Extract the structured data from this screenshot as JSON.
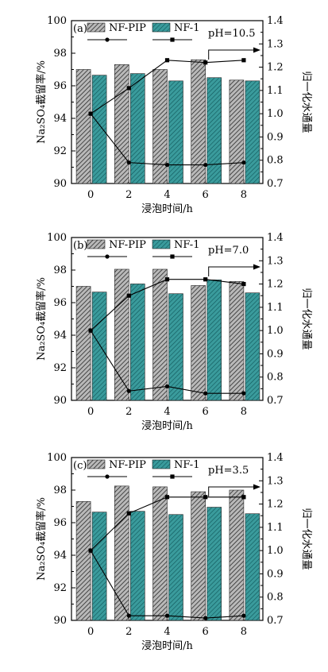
{
  "chart_data": [
    {
      "type": "bar",
      "panel_label": "(a)",
      "annotation": "pH=10.5",
      "categories": [
        "0",
        "2",
        "4",
        "6",
        "8"
      ],
      "xlabel": "浸泡时间/h",
      "ylabel": "Na₂SO₄截留率/%",
      "y2label": "归一化水通量",
      "ylim": [
        90,
        100
      ],
      "y2lim": [
        0.7,
        1.4
      ],
      "yticks": [
        "90",
        "92",
        "94",
        "96",
        "98",
        "100"
      ],
      "y2ticks": [
        "0.7",
        "0.8",
        "0.9",
        "1.0",
        "1.1",
        "1.2",
        "1.3",
        "1.4"
      ],
      "series": [
        {
          "name": "NF-PIP",
          "kind": "bar",
          "values": [
            97.0,
            97.3,
            97.0,
            97.6,
            96.35
          ]
        },
        {
          "name": "NF-1",
          "kind": "bar",
          "values": [
            96.65,
            96.75,
            96.3,
            96.5,
            96.3
          ]
        },
        {
          "name": "NF-PIP",
          "kind": "line",
          "marker": "circle",
          "axis": "right",
          "values": [
            1.0,
            0.79,
            0.78,
            0.78,
            0.79
          ]
        },
        {
          "name": "NF-1",
          "kind": "line",
          "marker": "square",
          "axis": "right",
          "values": [
            1.0,
            1.11,
            1.23,
            1.22,
            1.23
          ]
        }
      ],
      "legend_position": "top-left",
      "grid": false
    },
    {
      "type": "bar",
      "panel_label": "(b)",
      "annotation": "pH=7.0",
      "categories": [
        "0",
        "2",
        "4",
        "6",
        "8"
      ],
      "xlabel": "浸泡时间/h",
      "ylabel": "Na₂SO₄截留率/%",
      "y2label": "归一化水通量",
      "ylim": [
        90,
        100
      ],
      "y2lim": [
        0.7,
        1.4
      ],
      "yticks": [
        "90",
        "92",
        "94",
        "96",
        "98",
        "100"
      ],
      "y2ticks": [
        "0.7",
        "0.8",
        "0.9",
        "1.0",
        "1.1",
        "1.2",
        "1.3",
        "1.4"
      ],
      "series": [
        {
          "name": "NF-PIP",
          "kind": "bar",
          "values": [
            97.0,
            98.05,
            98.05,
            97.05,
            97.3
          ]
        },
        {
          "name": "NF-1",
          "kind": "bar",
          "values": [
            96.65,
            97.15,
            96.55,
            97.4,
            96.6
          ]
        },
        {
          "name": "NF-PIP",
          "kind": "line",
          "marker": "circle",
          "axis": "right",
          "values": [
            1.0,
            0.74,
            0.76,
            0.73,
            0.73
          ]
        },
        {
          "name": "NF-1",
          "kind": "line",
          "marker": "square",
          "axis": "right",
          "values": [
            1.0,
            1.15,
            1.22,
            1.22,
            1.2
          ]
        }
      ],
      "legend_position": "top-left",
      "grid": false
    },
    {
      "type": "bar",
      "panel_label": "(c)",
      "annotation": "pH=3.5",
      "categories": [
        "0",
        "2",
        "4",
        "6",
        "8"
      ],
      "xlabel": "浸泡时间/h",
      "ylabel": "Na₂SO₄截留率/%",
      "y2label": "归一化水通量",
      "ylim": [
        90,
        100
      ],
      "y2lim": [
        0.7,
        1.4
      ],
      "yticks": [
        "90",
        "92",
        "94",
        "96",
        "98",
        "100"
      ],
      "y2ticks": [
        "0.7",
        "0.8",
        "0.9",
        "1.0",
        "1.1",
        "1.2",
        "1.3",
        "1.4"
      ],
      "series": [
        {
          "name": "NF-PIP",
          "kind": "bar",
          "values": [
            97.3,
            98.25,
            98.2,
            97.9,
            98.0
          ]
        },
        {
          "name": "NF-1",
          "kind": "bar",
          "values": [
            96.65,
            96.7,
            96.5,
            96.95,
            96.55
          ]
        },
        {
          "name": "NF-PIP",
          "kind": "line",
          "marker": "circle",
          "axis": "right",
          "values": [
            1.0,
            0.72,
            0.72,
            0.71,
            0.72
          ]
        },
        {
          "name": "NF-1",
          "kind": "line",
          "marker": "square",
          "axis": "right",
          "values": [
            1.0,
            1.16,
            1.23,
            1.23,
            1.23
          ]
        }
      ],
      "legend_position": "top-left",
      "grid": false
    }
  ],
  "colors": {
    "nf_pip_bar": "#b9b9b9",
    "nf_pip_hatch": "#2a2a2a",
    "nf1_bar": "#3a9b9c",
    "nf1_hatch": "#0f5458",
    "line": "#000000"
  }
}
